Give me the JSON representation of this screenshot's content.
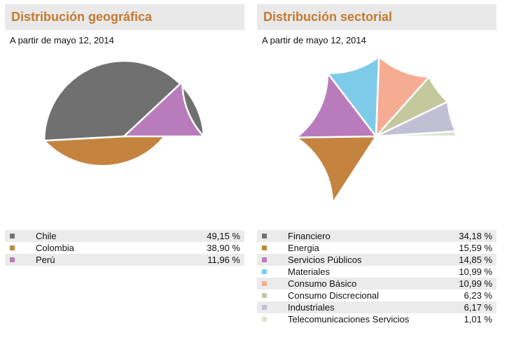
{
  "left_panel": {
    "title": "Distribución geográfica",
    "subtitle": "A partir de mayo 12, 2014"
  },
  "right_panel": {
    "title": "Distribución sectorial",
    "subtitle": "A partir de mayo 12, 2014"
  },
  "chart_data": [
    {
      "type": "pie",
      "title": "Distribución geográfica",
      "subtitle": "A partir de mayo 12, 2014",
      "legend_placement": "bottom",
      "slices": [
        {
          "label": "Chile",
          "value": 49.15,
          "display": "49,15 %",
          "color": "#707070"
        },
        {
          "label": "Colombia",
          "value": 38.9,
          "display": "38,90 %",
          "color": "#c4843f"
        },
        {
          "label": "Perú",
          "value": 11.96,
          "display": "11,96 %",
          "color": "#b87bbb"
        }
      ]
    },
    {
      "type": "pie",
      "title": "Distribución sectorial",
      "subtitle": "A partir de mayo 12, 2014",
      "legend_placement": "bottom",
      "slices": [
        {
          "label": "Financiero",
          "value": 34.18,
          "display": "34,18 %",
          "color": "#707070"
        },
        {
          "label": "Energia",
          "value": 15.59,
          "display": "15,59 %",
          "color": "#c4843f"
        },
        {
          "label": "Servicios Públicos",
          "value": 14.85,
          "display": "14,85 %",
          "color": "#b87bbb"
        },
        {
          "label": "Materiales",
          "value": 10.99,
          "display": "10,99 %",
          "color": "#7ecbe9"
        },
        {
          "label": "Consumo Básico",
          "value": 10.99,
          "display": "10,99 %",
          "color": "#f6ab93"
        },
        {
          "label": "Consumo Discrecional",
          "value": 6.23,
          "display": "6,23 %",
          "color": "#c3c99d"
        },
        {
          "label": "Industriales",
          "value": 6.17,
          "display": "6,17 %",
          "color": "#c1bfd4"
        },
        {
          "label": "Telecomunicaciones Servicios",
          "value": 1.01,
          "display": "1,01 %",
          "color": "#dde4cd"
        }
      ]
    }
  ]
}
